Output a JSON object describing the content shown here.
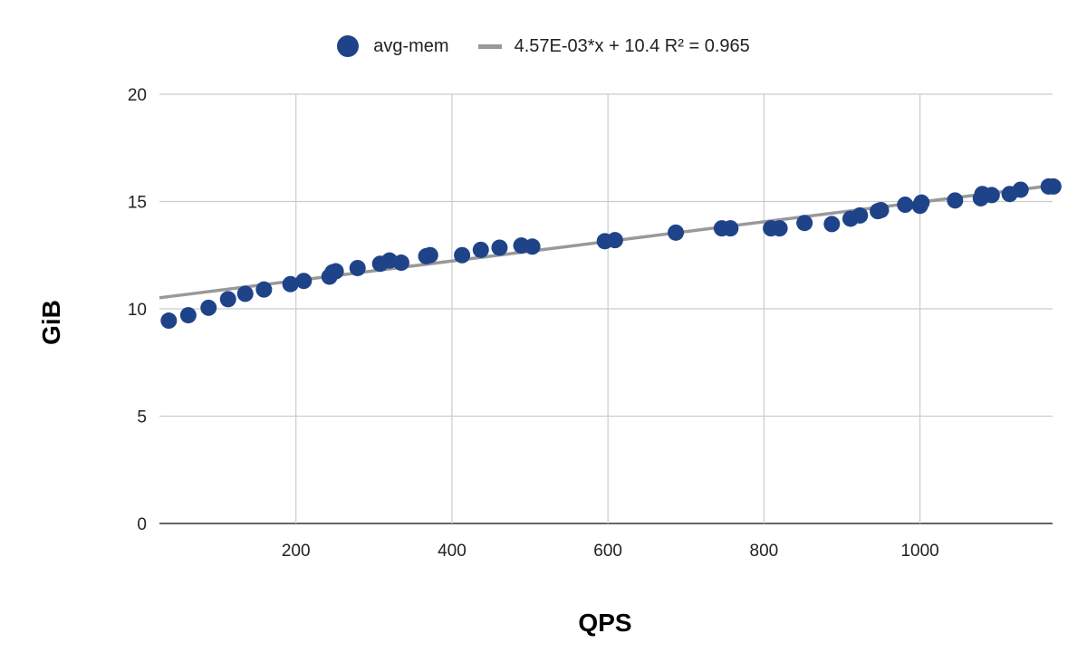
{
  "chart_data": {
    "type": "scatter",
    "title": "",
    "xlabel": "QPS",
    "ylabel": "GiB",
    "xlim": [
      25,
      1170
    ],
    "ylim": [
      0,
      20
    ],
    "x_ticks": [
      200,
      400,
      600,
      800,
      1000
    ],
    "y_ticks": [
      0,
      5,
      10,
      15,
      20
    ],
    "grid": true,
    "legend_position": "top-center",
    "series": [
      {
        "name": "avg-mem",
        "color": "#1f4388",
        "points": [
          [
            37,
            9.45
          ],
          [
            62,
            9.7
          ],
          [
            88,
            10.05
          ],
          [
            113,
            10.45
          ],
          [
            135,
            10.7
          ],
          [
            159,
            10.9
          ],
          [
            193,
            11.15
          ],
          [
            210,
            11.3
          ],
          [
            243,
            11.5
          ],
          [
            247,
            11.7
          ],
          [
            251,
            11.75
          ],
          [
            279,
            11.9
          ],
          [
            308,
            12.1
          ],
          [
            320,
            12.25
          ],
          [
            335,
            12.15
          ],
          [
            367,
            12.45
          ],
          [
            372,
            12.5
          ],
          [
            413,
            12.5
          ],
          [
            437,
            12.75
          ],
          [
            461,
            12.85
          ],
          [
            489,
            12.95
          ],
          [
            503,
            12.9
          ],
          [
            596,
            13.15
          ],
          [
            609,
            13.2
          ],
          [
            687,
            13.55
          ],
          [
            746,
            13.75
          ],
          [
            757,
            13.75
          ],
          [
            809,
            13.75
          ],
          [
            820,
            13.75
          ],
          [
            852,
            14.0
          ],
          [
            887,
            13.95
          ],
          [
            911,
            14.2
          ],
          [
            923,
            14.35
          ],
          [
            946,
            14.55
          ],
          [
            950,
            14.6
          ],
          [
            981,
            14.85
          ],
          [
            1000,
            14.8
          ],
          [
            1002,
            14.95
          ],
          [
            1045,
            15.05
          ],
          [
            1078,
            15.15
          ],
          [
            1080,
            15.35
          ],
          [
            1092,
            15.3
          ],
          [
            1115,
            15.35
          ],
          [
            1129,
            15.55
          ],
          [
            1165,
            15.7
          ],
          [
            1171,
            15.7
          ]
        ]
      }
    ],
    "trendline": {
      "label": "4.57E-03*x + 10.4 R² = 0.965",
      "slope": 0.00457,
      "intercept": 10.4,
      "color": "#999999"
    }
  }
}
